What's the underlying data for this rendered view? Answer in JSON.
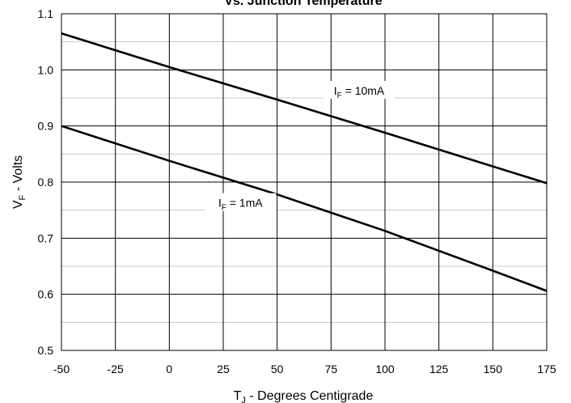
{
  "chart_data": {
    "type": "line",
    "title": "Vs. Junction Temperature",
    "xlabel": {
      "main": "T",
      "sub": "J",
      "rest": " - Degrees Centigrade"
    },
    "ylabel": {
      "main": "V",
      "sub": "F",
      "rest": " - Volts"
    },
    "xlim": [
      -50,
      175
    ],
    "ylim": [
      0.5,
      1.1
    ],
    "x_ticks": [
      -50,
      -25,
      0,
      25,
      50,
      75,
      100,
      125,
      150,
      175
    ],
    "x_tick_labels": [
      "-50",
      "-25",
      "0",
      "25",
      "50",
      "75",
      "100",
      "125",
      "150",
      "175"
    ],
    "y_ticks": [
      0.5,
      0.6,
      0.7,
      0.8,
      0.9,
      1.0,
      1.1
    ],
    "y_tick_labels": [
      "0.5",
      "0.6",
      "0.7",
      "0.8",
      "0.9",
      "1.0",
      "1.1"
    ],
    "grid": true,
    "minor_y_gridlines": true,
    "series": [
      {
        "label": {
          "main": "I",
          "sub": "F",
          "rest": " = 10mA"
        },
        "color": "#000000",
        "x": [
          -50,
          0,
          50,
          100,
          150,
          175
        ],
        "y": [
          1.065,
          1.005,
          0.947,
          0.888,
          0.828,
          0.798
        ]
      },
      {
        "label": {
          "main": "I",
          "sub": "F",
          "rest": " = 1mA"
        },
        "color": "#000000",
        "x": [
          -50,
          0,
          50,
          100,
          150,
          175
        ],
        "y": [
          0.9,
          0.838,
          0.778,
          0.713,
          0.642,
          0.606
        ]
      }
    ]
  }
}
